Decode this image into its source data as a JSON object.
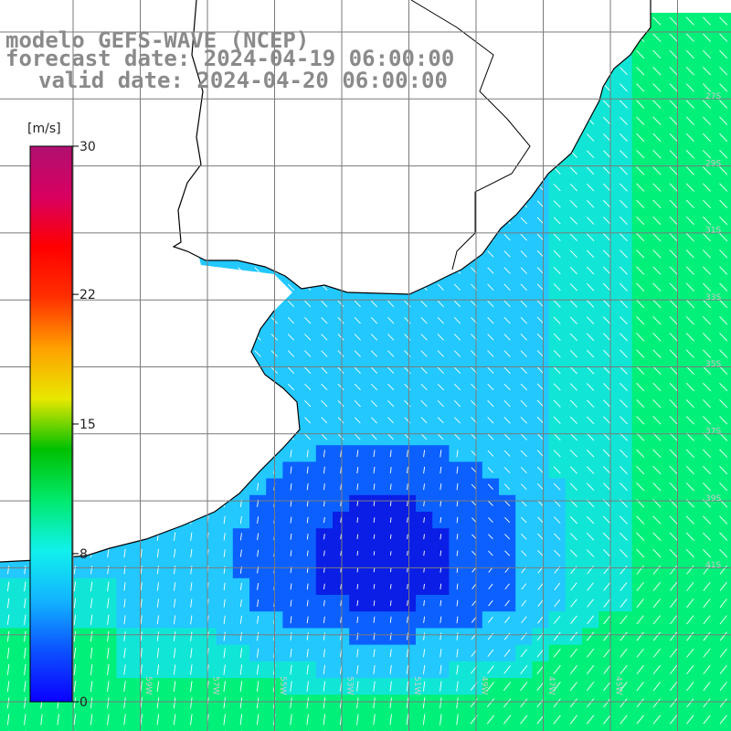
{
  "title": {
    "model": "modelo GEFS-WAVE (NCEP)",
    "forecast": "forecast date: 2024-04-19 06:00:00",
    "valid": "valid date: 2024-04-20 06:00:00"
  },
  "colorbar": {
    "unit": "[m/s]",
    "ticks": [
      {
        "value": 30,
        "label": "30"
      },
      {
        "value": 22,
        "label": "22"
      },
      {
        "value": 15,
        "label": "15"
      },
      {
        "value": 8,
        "label": "8"
      },
      {
        "value": 0,
        "label": "0"
      }
    ],
    "colors": [
      "#0a00ff",
      "#0c50ff",
      "#12b4ff",
      "#11f1ec",
      "#00e96b",
      "#00c000",
      "#e8e800",
      "#ffa000",
      "#ff3000",
      "#ff0000",
      "#d80060",
      "#b01070"
    ]
  },
  "grid": {
    "lat_labels": [
      "27S",
      "29S",
      "31S",
      "33S",
      "35S",
      "37S",
      "39S",
      "41S"
    ],
    "lon_labels": [
      "59W",
      "57W",
      "55W",
      "53W",
      "51W",
      "49W",
      "47W",
      "45W"
    ]
  },
  "field": {
    "calm_color": "#0a1ee6",
    "mid_color": "#22c8ff",
    "strong_color": "#00f07a",
    "land_color": "#ffffff",
    "coast_color": "#000000",
    "arrow_color": "#ffffff"
  }
}
